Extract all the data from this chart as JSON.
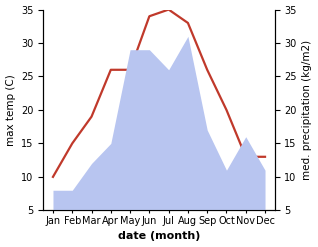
{
  "months": [
    "Jan",
    "Feb",
    "Mar",
    "Apr",
    "May",
    "Jun",
    "Jul",
    "Aug",
    "Sep",
    "Oct",
    "Nov",
    "Dec"
  ],
  "temperature": [
    10,
    15,
    19,
    26,
    26,
    34,
    35,
    33,
    26,
    20,
    13,
    13
  ],
  "precipitation": [
    8,
    8,
    12,
    15,
    29,
    29,
    26,
    31,
    17,
    11,
    16,
    11
  ],
  "temp_color": "#c0392b",
  "precip_color": "#b8c5f0",
  "background_color": "#ffffff",
  "ylabel_left": "max temp (C)",
  "ylabel_right": "med. precipitation (kg/m2)",
  "xlabel": "date (month)",
  "ylim_left": [
    5,
    35
  ],
  "ylim_right": [
    5,
    35
  ],
  "yticks_left": [
    5,
    10,
    15,
    20,
    25,
    30,
    35
  ],
  "yticks_right": [
    5,
    10,
    15,
    20,
    25,
    30,
    35
  ],
  "axis_fontsize": 7.5,
  "tick_fontsize": 7,
  "xlabel_fontsize": 8,
  "line_width": 1.6
}
